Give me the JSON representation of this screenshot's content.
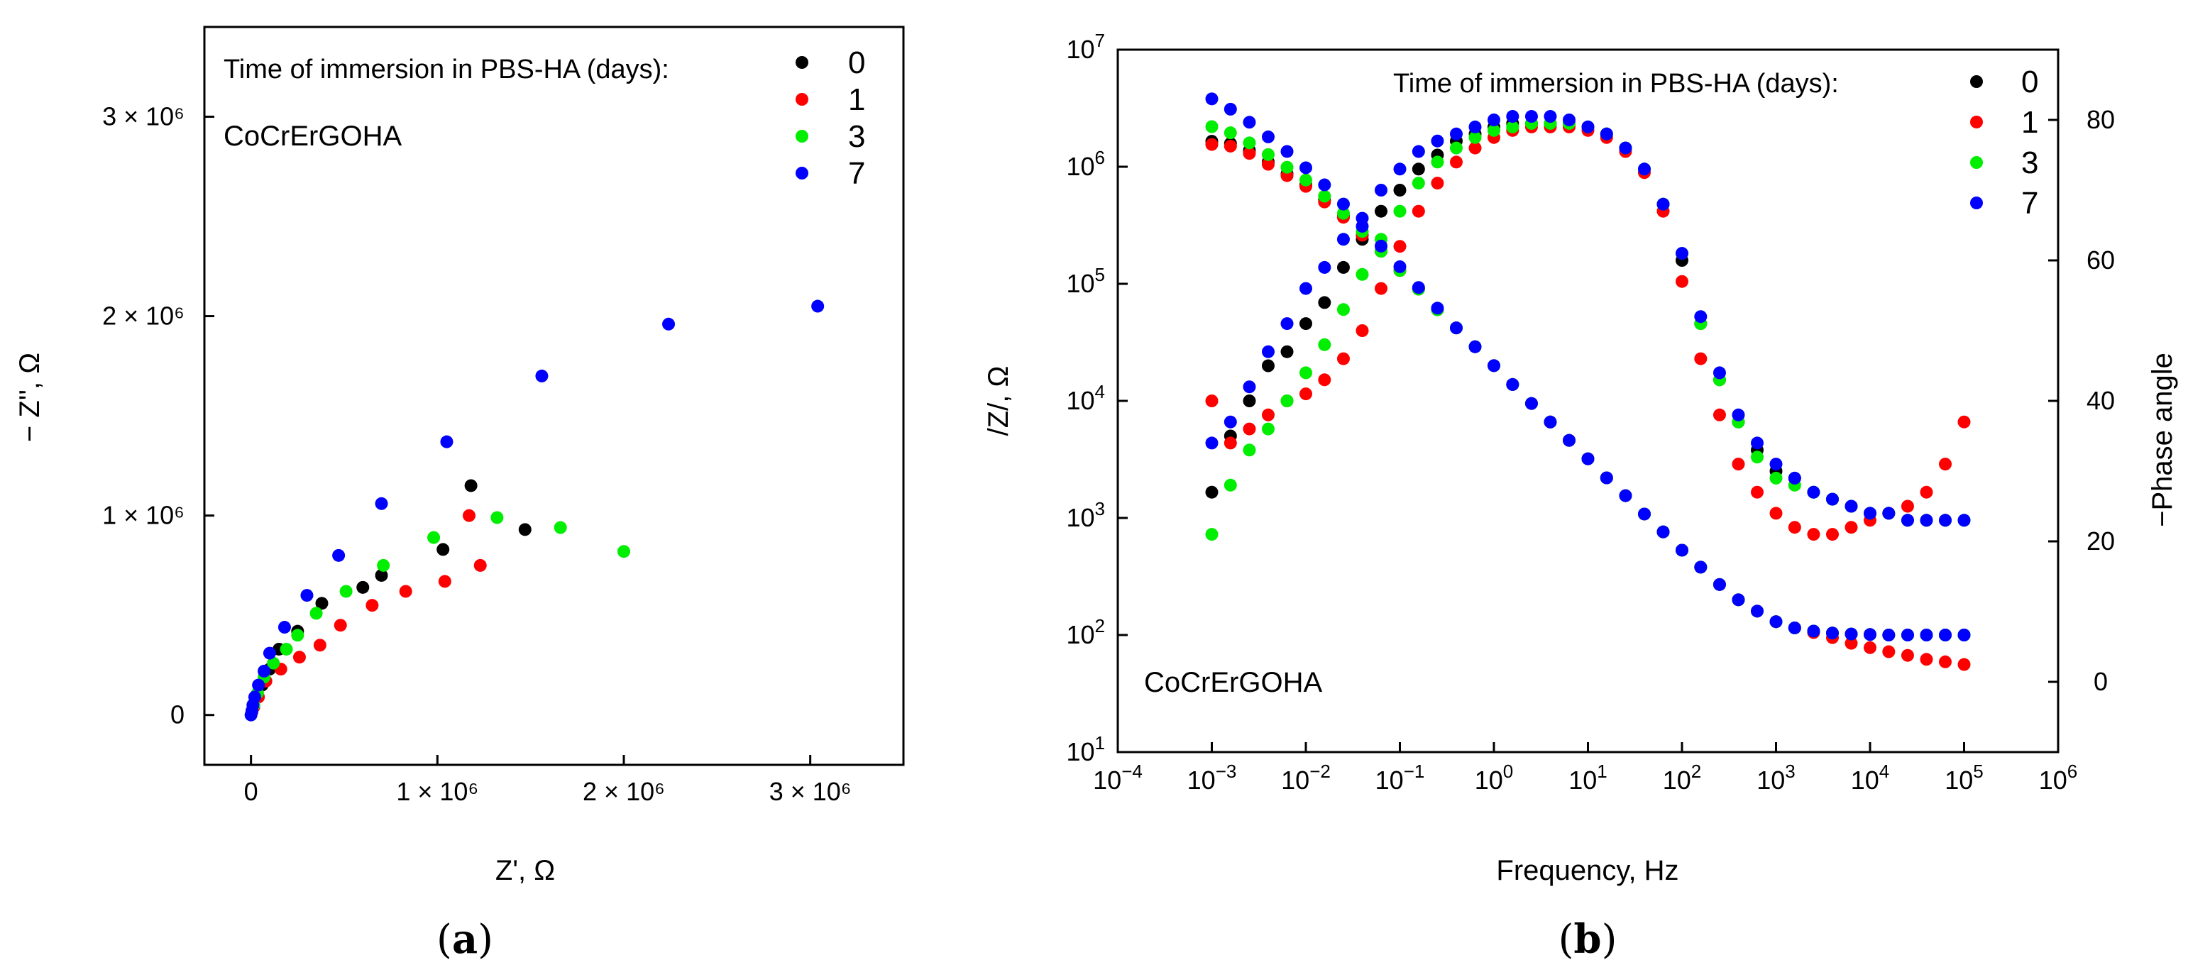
{
  "chart_data": [
    {
      "type": "scatter",
      "caption_prefix": "(",
      "caption_letter": "a",
      "caption_suffix": ")",
      "xlabel": "Z', Ω",
      "ylabel": "− Z'', Ω",
      "xlim": [
        -250000,
        3500000
      ],
      "ylim": [
        -250000,
        3450000
      ],
      "xticks": [
        {
          "value": 0,
          "label": "0"
        },
        {
          "value": 1000000,
          "label": "1 × 10⁶"
        },
        {
          "value": 2000000,
          "label": "2 × 10⁶"
        },
        {
          "value": 3000000,
          "label": "3 × 10⁶"
        }
      ],
      "yticks": [
        {
          "value": 0,
          "label": "0"
        },
        {
          "value": 1000000,
          "label": "1 × 10⁶"
        },
        {
          "value": 2000000,
          "label": "2 × 10⁶"
        },
        {
          "value": 3000000,
          "label": "3 × 10⁶"
        }
      ],
      "legend_title": "Time of immersion in PBS-HA (days):",
      "sample_label": "CoCrErGOHA",
      "series": [
        {
          "name": "0",
          "color": "#000000",
          "points": [
            [
              5000,
              20000
            ],
            [
              15000,
              50000
            ],
            [
              30000,
              100000
            ],
            [
              60000,
              150000
            ],
            [
              100000,
              230000
            ],
            [
              150000,
              330000
            ],
            [
              250000,
              420000
            ],
            [
              380000,
              560000
            ],
            [
              600000,
              640000
            ],
            [
              700000,
              700000
            ],
            [
              1030000,
              830000
            ],
            [
              1180000,
              1150000
            ],
            [
              1470000,
              930000
            ]
          ]
        },
        {
          "name": "1",
          "color": "#ff0000",
          "points": [
            [
              5000,
              15000
            ],
            [
              15000,
              40000
            ],
            [
              40000,
              90000
            ],
            [
              80000,
              170000
            ],
            [
              160000,
              230000
            ],
            [
              260000,
              290000
            ],
            [
              370000,
              350000
            ],
            [
              480000,
              450000
            ],
            [
              650000,
              550000
            ],
            [
              830000,
              620000
            ],
            [
              1040000,
              670000
            ],
            [
              1170000,
              1000000
            ],
            [
              1230000,
              750000
            ]
          ]
        },
        {
          "name": "3",
          "color": "#00ee00",
          "points": [
            [
              5000,
              20000
            ],
            [
              15000,
              50000
            ],
            [
              35000,
              110000
            ],
            [
              70000,
              190000
            ],
            [
              120000,
              260000
            ],
            [
              190000,
              330000
            ],
            [
              250000,
              400000
            ],
            [
              350000,
              510000
            ],
            [
              510000,
              620000
            ],
            [
              710000,
              750000
            ],
            [
              980000,
              890000
            ],
            [
              1320000,
              990000
            ],
            [
              1660000,
              940000
            ],
            [
              2000000,
              820000
            ]
          ]
        },
        {
          "name": "7",
          "color": "#0000ff",
          "points": [
            [
              0,
              0
            ],
            [
              5000,
              20000
            ],
            [
              10000,
              50000
            ],
            [
              20000,
              90000
            ],
            [
              40000,
              150000
            ],
            [
              70000,
              220000
            ],
            [
              100000,
              310000
            ],
            [
              180000,
              440000
            ],
            [
              300000,
              600000
            ],
            [
              470000,
              800000
            ],
            [
              700000,
              1060000
            ],
            [
              1050000,
              1370000
            ],
            [
              1560000,
              1700000
            ],
            [
              2240000,
              1960000
            ],
            [
              3040000,
              2050000
            ]
          ]
        }
      ]
    },
    {
      "type": "scatter",
      "caption_prefix": "(",
      "caption_letter": "b",
      "caption_suffix": ")",
      "xlabel": "Frequency, Hz",
      "ylabel": "/Z/, Ω",
      "ylabel_right": "−Phase angle",
      "x_scale": "log",
      "y_scale": "log",
      "xlim": [
        0.0001,
        1000000
      ],
      "ylim": [
        10,
        10000000
      ],
      "ylim_right": [
        -10,
        90
      ],
      "xticks": [
        {
          "value": 0.0001,
          "base": "10",
          "exp": "−4"
        },
        {
          "value": 0.001,
          "base": "10",
          "exp": "−3"
        },
        {
          "value": 0.01,
          "base": "10",
          "exp": "−2"
        },
        {
          "value": 0.1,
          "base": "10",
          "exp": "−1"
        },
        {
          "value": 1,
          "base": "10",
          "exp": "0"
        },
        {
          "value": 10,
          "base": "10",
          "exp": "1"
        },
        {
          "value": 100,
          "base": "10",
          "exp": "2"
        },
        {
          "value": 1000,
          "base": "10",
          "exp": "3"
        },
        {
          "value": 10000,
          "base": "10",
          "exp": "4"
        },
        {
          "value": 100000,
          "base": "10",
          "exp": "5"
        },
        {
          "value": 1000000,
          "base": "10",
          "exp": "6"
        }
      ],
      "yticks": [
        {
          "value": 10,
          "base": "10",
          "exp": "1"
        },
        {
          "value": 100,
          "base": "10",
          "exp": "2"
        },
        {
          "value": 1000,
          "base": "10",
          "exp": "3"
        },
        {
          "value": 10000,
          "base": "10",
          "exp": "4"
        },
        {
          "value": 100000,
          "base": "10",
          "exp": "5"
        },
        {
          "value": 1000000,
          "base": "10",
          "exp": "6"
        },
        {
          "value": 10000000,
          "base": "10",
          "exp": "7"
        }
      ],
      "yticks_right": [
        {
          "value": 0,
          "label": "0"
        },
        {
          "value": 20,
          "label": "20"
        },
        {
          "value": 40,
          "label": "40"
        },
        {
          "value": 60,
          "label": "60"
        },
        {
          "value": 80,
          "label": "80"
        }
      ],
      "legend_title": "Time of immersion in PBS-HA (days):",
      "sample_label": "CoCrErGOHA",
      "frequencies": [
        0.001,
        0.00158,
        0.00251,
        0.00398,
        0.00631,
        0.01,
        0.0158,
        0.0251,
        0.0398,
        0.0631,
        0.1,
        0.158,
        0.251,
        0.398,
        0.631,
        1,
        1.58,
        2.51,
        3.98,
        6.31,
        10,
        15.8,
        25.1,
        39.8,
        63.1,
        100,
        158,
        251,
        398,
        631,
        1000,
        1580,
        2510,
        3980,
        6310,
        10000,
        15800,
        25100,
        39800,
        63100,
        100000
      ],
      "series": [
        {
          "name": "0",
          "color": "#000000",
          "impedance": [
            1650000,
            1580000,
            1380000,
            1100000,
            870000,
            700000,
            520000,
            380000,
            260000,
            190000,
            130000,
            90000,
            60000,
            42000,
            29000,
            20000,
            13800,
            9500,
            6600,
            4600,
            3200,
            2200,
            1550,
            1080,
            760,
            530,
            380,
            270,
            200,
            160,
            130,
            115,
            108,
            104,
            102,
            101,
            100,
            100,
            100,
            100,
            100
          ],
          "phase": [
            27,
            35,
            40,
            45,
            47,
            51,
            54,
            59,
            63,
            67,
            70,
            73,
            75,
            77,
            78,
            79,
            79.5,
            79.5,
            79.5,
            79.5,
            79,
            78,
            76,
            73,
            68,
            60,
            51,
            43,
            37,
            33,
            30,
            29,
            27,
            26,
            25,
            24,
            24,
            23,
            23,
            23,
            23
          ]
        },
        {
          "name": "1",
          "color": "#ff0000",
          "impedance": [
            1550000,
            1500000,
            1300000,
            1050000,
            840000,
            680000,
            500000,
            370000,
            260000,
            190000,
            130000,
            90000,
            60000,
            42000,
            29000,
            20000,
            13800,
            9500,
            6600,
            4600,
            3200,
            2200,
            1550,
            1080,
            760,
            530,
            380,
            270,
            200,
            160,
            130,
            115,
            105,
            95,
            85,
            78,
            72,
            67,
            62,
            59,
            56
          ],
          "phase": [
            40,
            34,
            36,
            38,
            40,
            41,
            43,
            46,
            50,
            56,
            62,
            67,
            71,
            74,
            76,
            77.5,
            78.5,
            79,
            79,
            79,
            78.5,
            77.5,
            75.5,
            72.5,
            67,
            57,
            46,
            38,
            31,
            27,
            24,
            22,
            21,
            21,
            22,
            23,
            24,
            25,
            27,
            31,
            37
          ]
        },
        {
          "name": "3",
          "color": "#00ee00",
          "impedance": [
            2200000,
            1950000,
            1600000,
            1270000,
            990000,
            770000,
            560000,
            400000,
            280000,
            190000,
            130000,
            90000,
            60000,
            42000,
            29000,
            20000,
            13800,
            9500,
            6600,
            4600,
            3200,
            2200,
            1550,
            1080,
            760,
            530,
            380,
            270,
            200,
            160,
            130,
            115,
            108,
            104,
            102,
            101,
            100,
            100,
            100,
            100,
            100
          ],
          "phase": [
            21,
            28,
            33,
            36,
            40,
            44,
            48,
            53,
            58,
            63,
            67,
            71,
            74,
            76,
            77.5,
            78.5,
            79,
            79.5,
            79.5,
            79.5,
            79,
            78,
            76,
            73,
            68,
            61,
            51,
            43,
            37,
            32,
            29,
            28,
            27,
            26,
            25,
            24,
            24,
            23,
            23,
            23,
            23
          ]
        },
        {
          "name": "7",
          "color": "#0000ff",
          "impedance": [
            3800000,
            3100000,
            2400000,
            1800000,
            1350000,
            980000,
            700000,
            480000,
            310000,
            210000,
            140000,
            93000,
            62000,
            42000,
            29000,
            20000,
            13800,
            9500,
            6600,
            4600,
            3200,
            2200,
            1550,
            1080,
            760,
            530,
            380,
            270,
            200,
            160,
            130,
            115,
            108,
            104,
            102,
            101,
            100,
            100,
            100,
            100,
            100
          ],
          "phase": [
            34,
            37,
            42,
            47,
            51,
            56,
            59,
            63,
            66,
            70,
            73,
            75.5,
            77,
            78,
            79,
            80,
            80.5,
            80.5,
            80.5,
            80,
            79,
            78,
            76,
            73,
            68,
            61,
            52,
            44,
            38,
            34,
            31,
            29,
            27,
            26,
            25,
            24,
            24,
            23,
            23,
            23,
            23
          ]
        }
      ]
    }
  ]
}
